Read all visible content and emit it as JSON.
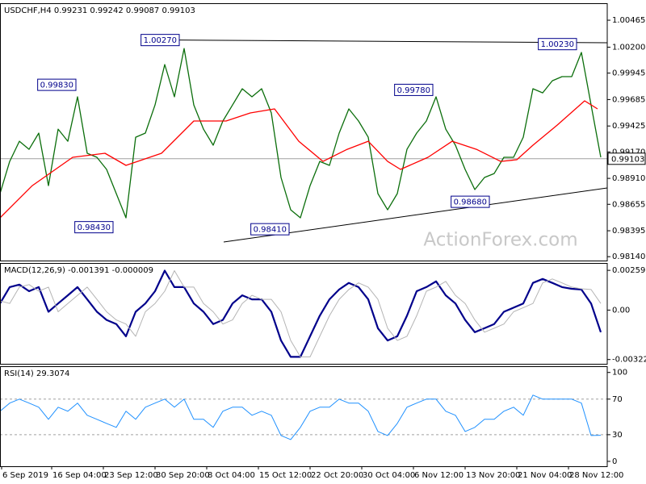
{
  "chart_data": [
    {
      "type": "line",
      "title": "USDCHF,H4 0.99231 0.99242 0.99087 0.99103",
      "watermark": "ActionForex.com",
      "xlim": [
        0,
        376
      ],
      "ylim": [
        0.98102,
        1.00632
      ],
      "yticks": [
        1.00465,
        {
          "value": 1.002,
          "label": "1.00200"
        },
        0.99945,
        0.99685,
        0.99425,
        {
          "value": 0.9917,
          "label": "0.99170"
        },
        {
          "value": 0.9891,
          "label": "0.98910"
        },
        0.98655,
        0.98395,
        {
          "value": 0.9814,
          "label": "0.98140"
        }
      ],
      "x": [
        0,
        6,
        12,
        18,
        24,
        30,
        36,
        42,
        48,
        54,
        60,
        66,
        72,
        78,
        84,
        90,
        96,
        102,
        108,
        114,
        120,
        126,
        132,
        138,
        144,
        150,
        156,
        162,
        168,
        174,
        180,
        186,
        192,
        198,
        204,
        210,
        216,
        222,
        228,
        234,
        240,
        246,
        252,
        258,
        264,
        270,
        276,
        282,
        288,
        294,
        300,
        306,
        312,
        318,
        324,
        330,
        336,
        342,
        348,
        354,
        360,
        366,
        372
      ],
      "series": [
        {
          "color": "#0b6e0b",
          "values": [
            0.9876,
            0.99077,
            0.99275,
            0.99196,
            0.99355,
            0.98839,
            0.99394,
            0.99275,
            0.99712,
            0.99157,
            0.99117,
            0.98998,
            0.9876,
            0.98522,
            0.99315,
            0.99355,
            0.99632,
            1.00029,
            0.99712,
            1.00187,
            0.99632,
            0.99394,
            0.99236,
            0.99474,
            0.99632,
            0.99791,
            0.99712,
            0.99791,
            0.99553,
            0.98919,
            0.98601,
            0.98522,
            0.98839,
            0.99077,
            0.99038,
            0.99355,
            0.99593,
            0.99474,
            0.99315,
            0.9876,
            0.98601,
            0.9876,
            0.99196,
            0.99355,
            0.99474,
            0.99712,
            0.99394,
            0.99236,
            0.98998,
            0.988,
            0.98919,
            0.98958,
            0.99117,
            0.99117,
            0.99315,
            0.99791,
            0.99751,
            0.9987,
            0.9991,
            0.9991,
            1.00148,
            0.99632,
            0.99117
          ]
        },
        {
          "color": "#ff0000",
          "x": [
            0,
            20,
            45,
            65,
            78,
            100,
            120,
            140,
            155,
            170,
            185,
            200,
            215,
            228,
            240,
            248,
            265,
            280,
            295,
            310,
            320,
            330,
            345,
            362,
            370
          ],
          "values": [
            0.98522,
            0.98839,
            0.99117,
            0.99157,
            0.99038,
            0.99157,
            0.99474,
            0.99474,
            0.99553,
            0.99593,
            0.99275,
            0.99077,
            0.99196,
            0.99275,
            0.99077,
            0.98998,
            0.99117,
            0.99275,
            0.99196,
            0.99077,
            0.99093,
            0.99236,
            0.99434,
            0.99672,
            0.99593
          ]
        }
      ],
      "trendlines": [
        {
          "x": [
            111,
            376
          ],
          "values": [
            1.0027,
            1.00243
          ]
        },
        {
          "x": [
            138.5,
            376
          ],
          "values": [
            0.98284,
            0.98816
          ]
        }
      ],
      "annotations": [
        {
          "x": 111,
          "value": 1.0027,
          "label": "1.00270"
        },
        {
          "x": 47,
          "value": 0.9983,
          "label": "0.99830"
        },
        {
          "x": 70,
          "value": 0.9843,
          "label": "0.98430"
        },
        {
          "x": 179,
          "value": 0.9841,
          "label": "0.98410"
        },
        {
          "x": 268,
          "value": 0.9978,
          "label": "0.99780"
        },
        {
          "x": 303,
          "value": 0.9868,
          "label": "0.98680"
        },
        {
          "x": 357,
          "value": 1.0023,
          "label": "1.00230"
        }
      ],
      "last_price": 0.99103
    },
    {
      "type": "line",
      "title": "MACD(12,26,9) -0.001391 -0.000009",
      "xlim": [
        0,
        376
      ],
      "ylim": [
        -0.0035,
        0.00307
      ],
      "yticks": [
        0.00259,
        {
          "value": 0,
          "label": "0.00"
        },
        -0.003221
      ],
      "x": [
        0,
        6,
        12,
        18,
        24,
        30,
        36,
        42,
        48,
        54,
        60,
        66,
        72,
        78,
        84,
        90,
        96,
        102,
        108,
        114,
        120,
        126,
        132,
        138,
        144,
        150,
        156,
        162,
        168,
        174,
        180,
        186,
        192,
        198,
        204,
        210,
        216,
        222,
        228,
        234,
        240,
        246,
        252,
        258,
        264,
        270,
        276,
        282,
        288,
        294,
        300,
        306,
        312,
        318,
        324,
        330,
        336,
        342,
        348,
        354,
        360,
        366,
        372
      ],
      "series": [
        {
          "color": "#00008b",
          "width": 2.2,
          "values": [
            0.00043,
            0.0015,
            0.00166,
            0.00123,
            0.0015,
            -0.00011,
            0.00043,
            0.00096,
            0.0015,
            0.0007,
            -0.00011,
            -0.00064,
            -0.00091,
            -0.00171,
            -0.00011,
            0.00043,
            0.00123,
            0.00257,
            0.0015,
            0.0015,
            0.00043,
            -0.00011,
            -0.00091,
            -0.00064,
            0.00043,
            0.00096,
            0.0007,
            0.0007,
            -0.00011,
            -0.00198,
            -0.00305,
            -0.00305,
            -0.00171,
            -0.00037,
            0.0007,
            0.00134,
            0.00177,
            0.0015,
            0.0007,
            -0.00118,
            -0.00198,
            -0.00171,
            -0.00037,
            0.00123,
            0.0015,
            0.00187,
            0.00096,
            0.00043,
            -0.00064,
            -0.00144,
            -0.00118,
            -0.00091,
            -0.00011,
            0.00016,
            0.00043,
            0.00177,
            0.00203,
            0.00177,
            0.0015,
            0.00139,
            0.00134,
            0.00043,
            -0.00144
          ]
        },
        {
          "color": "#b4b4b4",
          "width": 1,
          "values": [
            0.0006,
            0.00043,
            0.0015,
            0.00166,
            0.00123,
            0.0015,
            -0.00011,
            0.00043,
            0.00096,
            0.0015,
            0.0007,
            -0.00011,
            -0.00064,
            -0.00091,
            -0.00171,
            -0.00011,
            0.00043,
            0.00123,
            0.00257,
            0.0015,
            0.0015,
            0.00043,
            -0.00011,
            -0.00091,
            -0.00064,
            0.00043,
            0.00096,
            0.0007,
            0.0007,
            -0.00011,
            -0.00198,
            -0.00305,
            -0.00305,
            -0.00171,
            -0.00037,
            0.0007,
            0.00134,
            0.00177,
            0.0015,
            0.0007,
            -0.00118,
            -0.00198,
            -0.00171,
            -0.00037,
            0.00123,
            0.0015,
            0.00187,
            0.00096,
            0.00043,
            -0.00064,
            -0.00144,
            -0.00118,
            -0.00091,
            -0.00011,
            0.00016,
            0.00043,
            0.00177,
            0.00203,
            0.00177,
            0.0015,
            0.00139,
            0.00134,
            0.00043
          ]
        }
      ]
    },
    {
      "type": "line",
      "title": "RSI(14) 29.3074",
      "xlim": [
        0,
        376
      ],
      "ylim": [
        -5.5,
        107
      ],
      "yticks": [
        100,
        70,
        30,
        0
      ],
      "levels": [
        70,
        30
      ],
      "x": [
        0,
        6,
        12,
        18,
        24,
        30,
        36,
        42,
        48,
        54,
        60,
        66,
        72,
        78,
        84,
        90,
        96,
        102,
        108,
        114,
        120,
        126,
        132,
        138,
        144,
        150,
        156,
        162,
        168,
        174,
        180,
        186,
        192,
        198,
        204,
        210,
        216,
        222,
        228,
        234,
        240,
        246,
        252,
        258,
        264,
        270,
        276,
        282,
        288,
        294,
        300,
        306,
        312,
        318,
        324,
        330,
        336,
        342,
        348,
        354,
        360,
        366,
        372
      ],
      "series": [
        {
          "color": "#1e90ff",
          "width": 1,
          "values": [
            56.4,
            65.5,
            70,
            65.5,
            60.9,
            47.3,
            60.9,
            56.4,
            65.5,
            51.8,
            47.3,
            42.7,
            38.2,
            56.4,
            47.3,
            60.9,
            65.5,
            70,
            60.9,
            70,
            47.3,
            47.3,
            38.2,
            56.4,
            60.9,
            60.9,
            51.8,
            56.4,
            51.8,
            29.1,
            24.5,
            38.2,
            56.4,
            60.9,
            60.9,
            70,
            65.5,
            65.5,
            56.4,
            33.6,
            29.1,
            42.7,
            60.9,
            65.5,
            70,
            70,
            56.4,
            51.8,
            33.6,
            38.2,
            47.3,
            47.3,
            56.4,
            60.9,
            51.8,
            74.5,
            70,
            70,
            70,
            70,
            65.5,
            29.1,
            29.3
          ]
        }
      ],
      "xticks": [
        {
          "value": 1,
          "label": "6 Sep 2019"
        },
        {
          "value": 32,
          "label": "16 Sep 04:00"
        },
        {
          "value": 64,
          "label": "23 Sep 12:00"
        },
        {
          "value": 96,
          "label": "30 Sep 20:00"
        },
        {
          "value": 128,
          "label": "8 Oct 04:00"
        },
        {
          "value": 160,
          "label": "15 Oct 12:00"
        },
        {
          "value": 192,
          "label": "22 Oct 20:00"
        },
        {
          "value": 224,
          "label": "30 Oct 04:00"
        },
        {
          "value": 256,
          "label": "6 Nov 12:00"
        },
        {
          "value": 288,
          "label": "13 Nov 20:00"
        },
        {
          "value": 320,
          "label": "21 Nov 04:00"
        },
        {
          "value": 352,
          "label": "28 Nov 12:00"
        }
      ]
    }
  ]
}
